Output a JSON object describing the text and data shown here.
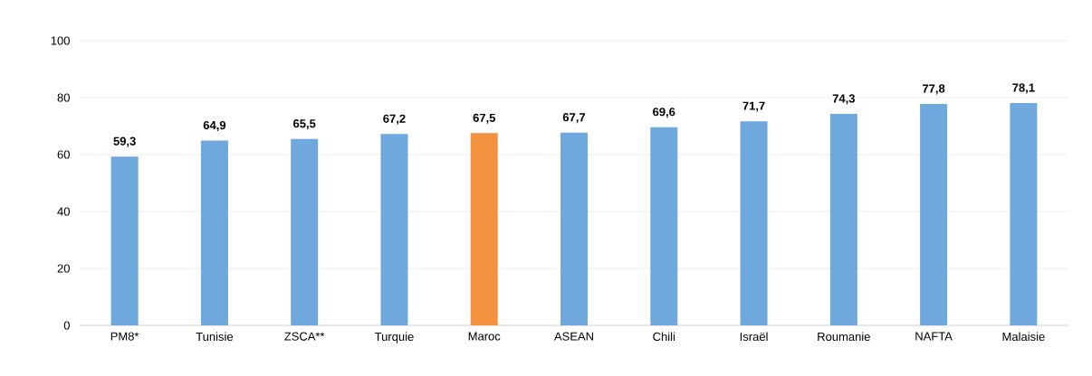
{
  "chart_data": {
    "type": "bar",
    "categories": [
      "PM8*",
      "Tunisie",
      "ZSCA**",
      "Turquie",
      "Maroc",
      "ASEAN",
      "Chili",
      "Israël",
      "Roumanie",
      "NAFTA",
      "Malaisie"
    ],
    "values": [
      59.3,
      64.9,
      65.5,
      67.2,
      67.5,
      67.7,
      69.6,
      71.7,
      74.3,
      77.8,
      78.1
    ],
    "colors": [
      "#6fa8dc",
      "#6fa8dc",
      "#6fa8dc",
      "#6fa8dc",
      "#f39340",
      "#6fa8dc",
      "#6fa8dc",
      "#6fa8dc",
      "#6fa8dc",
      "#6fa8dc",
      "#6fa8dc"
    ],
    "value_labels": [
      "59,3",
      "64,9",
      "65,5",
      "67,2",
      "67,5",
      "67,7",
      "69,6",
      "71,7",
      "74,3",
      "77,8",
      "78,1"
    ],
    "ylim": [
      0,
      100
    ],
    "yticks": [
      0,
      20,
      40,
      60,
      80,
      100
    ],
    "grid": "y"
  }
}
